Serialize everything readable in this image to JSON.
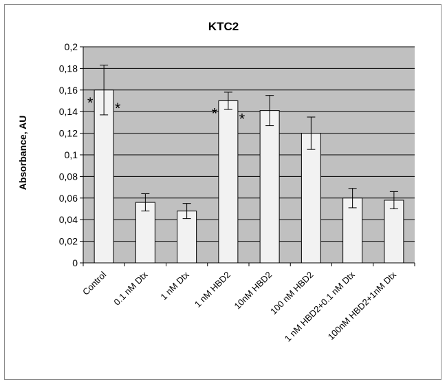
{
  "chart_data": {
    "type": "bar",
    "title": "KTC2",
    "xlabel": "",
    "ylabel": "Absorbance, AU",
    "ylim": [
      0,
      0.2
    ],
    "yticks": [
      0,
      0.02,
      0.04,
      0.06,
      0.08,
      0.1,
      0.12,
      0.14,
      0.16,
      0.18,
      0.2
    ],
    "ytick_labels": [
      "0",
      "0,02",
      "0,04",
      "0,06",
      "0,08",
      "0,1",
      "0,12",
      "0,14",
      "0,16",
      "0,18",
      "0,2"
    ],
    "grid": true,
    "plot_background": "#c0c0c0",
    "bar_color": "#f2f2f2",
    "categories": [
      "Control",
      "0.1 nM Dtx",
      "1 nM Dtx",
      "1 nM HBD2",
      "10nM HBD2",
      "100 nM HBD2",
      "1 nM HBD2+0.1 nM Dtx",
      "100nM HBD2+1nM Dtx"
    ],
    "values": [
      0.16,
      0.056,
      0.048,
      0.15,
      0.141,
      0.12,
      0.06,
      0.058
    ],
    "errors": [
      0.023,
      0.008,
      0.007,
      0.008,
      0.014,
      0.015,
      0.009,
      0.008
    ],
    "annotations": [
      {
        "text": "*",
        "category": 0,
        "side": "left"
      },
      {
        "text": "*",
        "category": 0,
        "side": "right"
      },
      {
        "text": "*",
        "category": 3,
        "side": "left"
      },
      {
        "text": "*",
        "category": 3,
        "side": "right"
      }
    ]
  }
}
